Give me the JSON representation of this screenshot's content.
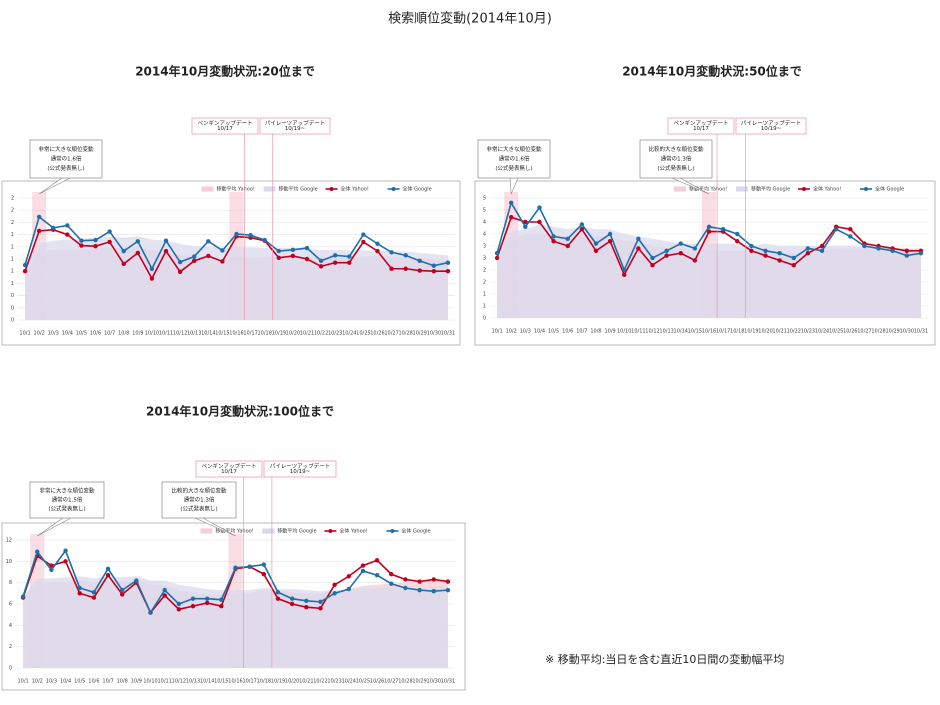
{
  "title": "検索順位変動(2014年10月)",
  "note": "※ 移動平均:当日を含む直近10日間の変動幅平均",
  "chart_data": [
    {
      "type": "line",
      "title": "2014年10月変動状況:20位まで",
      "categories": [
        "10/1",
        "10/2",
        "10/3",
        "10/4",
        "10/5",
        "10/6",
        "10/7",
        "10/8",
        "10/9",
        "10/10",
        "10/11",
        "10/12",
        "10/13",
        "10/14",
        "10/15",
        "10/16",
        "10/17",
        "10/18",
        "10/19",
        "10/20",
        "10/21",
        "10/22",
        "10/23",
        "10/24",
        "10/25",
        "10/26",
        "10/27",
        "10/28",
        "10/29",
        "10/30",
        "10/31"
      ],
      "series": [
        {
          "name": "移動平均 Yahoo!",
          "color": "#f4cdd6",
          "style": "area",
          "values": [
            0.8,
            1.1,
            1.15,
            1.15,
            1.16,
            1.18,
            1.18,
            1.18,
            1.2,
            1.14,
            1.13,
            1.07,
            1.04,
            1.03,
            1.0,
            1.03,
            1.02,
            1.03,
            1.03,
            1.04,
            1.03,
            1.03,
            1.02,
            1.01,
            1.04,
            1.05,
            1.04,
            1.02,
            1.0,
            0.98,
            0.96
          ]
        },
        {
          "name": "移動平均 Google",
          "color": "#d9d9ee",
          "style": "area",
          "values": [
            0.9,
            1.25,
            1.3,
            1.32,
            1.33,
            1.35,
            1.36,
            1.35,
            1.37,
            1.32,
            1.3,
            1.25,
            1.21,
            1.21,
            1.18,
            1.19,
            1.19,
            1.18,
            1.18,
            1.18,
            1.16,
            1.15,
            1.15,
            1.14,
            1.14,
            1.14,
            1.13,
            1.12,
            1.1,
            1.08,
            1.06
          ]
        },
        {
          "name": "全体 Yahoo!",
          "color": "#c0001f",
          "style": "line",
          "values": [
            0.8,
            1.46,
            1.48,
            1.4,
            1.22,
            1.21,
            1.28,
            0.92,
            1.1,
            0.68,
            1.13,
            0.79,
            0.97,
            1.05,
            0.96,
            1.37,
            1.35,
            1.3,
            1.02,
            1.05,
            1.0,
            0.88,
            0.94,
            0.94,
            1.28,
            1.13,
            0.84,
            0.84,
            0.81,
            0.8,
            0.8
          ]
        },
        {
          "name": "全体 Google",
          "color": "#1f6fa8",
          "style": "line",
          "values": [
            0.9,
            1.69,
            1.51,
            1.55,
            1.3,
            1.31,
            1.45,
            1.13,
            1.29,
            0.84,
            1.3,
            0.95,
            1.04,
            1.29,
            1.14,
            1.41,
            1.39,
            1.31,
            1.13,
            1.15,
            1.18,
            0.97,
            1.06,
            1.04,
            1.4,
            1.25,
            1.11,
            1.06,
            0.97,
            0.89,
            0.94
          ]
        }
      ],
      "ylim": [
        0,
        2
      ],
      "yticks": [
        0,
        {
          "value": 0.2,
          "label": "0"
        },
        {
          "value": 0.4,
          "label": "0"
        },
        {
          "value": 0.6,
          "label": "1"
        },
        {
          "value": 0.8,
          "label": "1"
        },
        1,
        {
          "value": 1.2,
          "label": "1"
        },
        {
          "value": 1.4,
          "label": "1"
        },
        {
          "value": 1.6,
          "label": "2"
        },
        {
          "value": 1.8,
          "label": "2"
        },
        2
      ],
      "grid": true,
      "annotations": [
        {
          "lines": [
            "非常に大きな順位変動",
            "通常の1.6倍",
            "(公式発表無し)"
          ]
        },
        {
          "lines": [
            "ペンギンアップデート",
            "10/17"
          ]
        },
        {
          "lines": [
            "パイレーツアップデート",
            "10/19~"
          ]
        }
      ]
    },
    {
      "type": "line",
      "title": "2014年10月変動状況:50位まで",
      "categories": [
        "10/1",
        "10/2",
        "10/3",
        "10/4",
        "10/5",
        "10/6",
        "10/7",
        "10/8",
        "10/9",
        "10/10",
        "10/11",
        "10/12",
        "10/13",
        "10/14",
        "10/15",
        "10/16",
        "10/17",
        "10/18",
        "10/19",
        "10/20",
        "10/21",
        "10/22",
        "10/23",
        "10/24",
        "10/25",
        "10/26",
        "10/27",
        "10/28",
        "10/29",
        "10/30",
        "10/31"
      ],
      "series": [
        {
          "name": "移動平均 Yahoo!",
          "color": "#f4cdd6",
          "style": "area",
          "values": [
            2.5,
            3.3,
            3.5,
            3.5,
            3.5,
            3.4,
            3.5,
            3.4,
            3.4,
            3.2,
            3.2,
            3.0,
            2.9,
            2.9,
            2.8,
            2.8,
            2.8,
            2.8,
            2.8,
            2.8,
            2.7,
            2.7,
            2.7,
            2.8,
            2.9,
            2.9,
            2.9,
            2.9,
            2.9,
            2.9,
            2.9
          ]
        },
        {
          "name": "移動平均 Google",
          "color": "#d9d9ee",
          "style": "area",
          "values": [
            2.7,
            3.6,
            3.7,
            3.9,
            3.8,
            3.7,
            3.8,
            3.7,
            3.7,
            3.5,
            3.4,
            3.3,
            3.2,
            3.1,
            3.1,
            3.1,
            3.1,
            3.1,
            3.0,
            3.1,
            3.0,
            3.0,
            3.0,
            3.0,
            3.0,
            3.0,
            3.0,
            3.0,
            2.9,
            2.9,
            2.8
          ]
        },
        {
          "name": "全体 Yahoo!",
          "color": "#c0001f",
          "style": "line",
          "values": [
            2.5,
            4.2,
            4.0,
            4.0,
            3.2,
            3.0,
            3.7,
            2.8,
            3.2,
            1.8,
            2.9,
            2.2,
            2.6,
            2.7,
            2.4,
            3.6,
            3.6,
            3.2,
            2.8,
            2.6,
            2.4,
            2.2,
            2.7,
            3.0,
            3.8,
            3.7,
            3.1,
            3.0,
            2.9,
            2.8,
            2.8
          ]
        },
        {
          "name": "全体 Google",
          "color": "#1f6fa8",
          "style": "line",
          "values": [
            2.7,
            4.8,
            3.8,
            4.6,
            3.4,
            3.3,
            3.9,
            3.1,
            3.5,
            2.0,
            3.3,
            2.5,
            2.8,
            3.1,
            2.9,
            3.8,
            3.7,
            3.5,
            3.0,
            2.8,
            2.7,
            2.5,
            2.9,
            2.8,
            3.7,
            3.4,
            3.0,
            2.9,
            2.8,
            2.6,
            2.7
          ]
        }
      ],
      "ylim": [
        0,
        5
      ],
      "yticks": [
        0,
        {
          "value": 0.5,
          "label": "1"
        },
        1,
        {
          "value": 1.5,
          "label": "2"
        },
        2,
        {
          "value": 2.5,
          "label": "3"
        },
        3,
        {
          "value": 3.5,
          "label": "4"
        },
        4,
        {
          "value": 4.5,
          "label": "5"
        },
        5
      ],
      "grid": true,
      "annotations": [
        {
          "lines": [
            "非常に大きな順位変動",
            "通常の1.6倍",
            "(公式発表無し)"
          ]
        },
        {
          "lines": [
            "比較的大きな順位変動",
            "通常の1.3倍",
            "(公式発表無し)"
          ]
        },
        {
          "lines": [
            "ペンギンアップデート",
            "10/17"
          ]
        },
        {
          "lines": [
            "パイレーツアップデート",
            "10/19~"
          ]
        }
      ]
    },
    {
      "type": "line",
      "title": "2014年10月変動状況:100位まで",
      "categories": [
        "10/1",
        "10/2",
        "10/3",
        "10/4",
        "10/5",
        "10/6",
        "10/7",
        "10/8",
        "10/9",
        "10/10",
        "10/11",
        "10/12",
        "10/13",
        "10/14",
        "10/15",
        "10/16",
        "10/17",
        "10/18",
        "10/19",
        "10/20",
        "10/21",
        "10/22",
        "10/23",
        "10/24",
        "10/25",
        "10/26",
        "10/27",
        "10/28",
        "10/29",
        "10/30",
        "10/31"
      ],
      "series": [
        {
          "name": "移動平均 Yahoo!",
          "color": "#f4cdd6",
          "style": "area",
          "values": [
            6.6,
            8.0,
            8.0,
            8.0,
            8.2,
            8.0,
            8.2,
            8.1,
            8.2,
            7.8,
            7.8,
            7.3,
            7.1,
            6.9,
            6.9,
            7.0,
            7.0,
            7.3,
            7.2,
            7.1,
            7.0,
            7.0,
            7.2,
            7.4,
            7.7,
            7.8,
            7.9,
            8.0,
            8.1,
            8.2,
            8.3
          ]
        },
        {
          "name": "移動平均 Google",
          "color": "#d9d9ee",
          "style": "area",
          "values": [
            6.7,
            8.4,
            8.4,
            8.5,
            8.6,
            8.4,
            8.6,
            8.5,
            8.6,
            8.2,
            8.2,
            7.8,
            7.6,
            7.4,
            7.3,
            7.3,
            7.3,
            7.5,
            7.4,
            7.4,
            7.3,
            7.2,
            7.3,
            7.3,
            7.5,
            7.5,
            7.5,
            7.5,
            7.5,
            7.6,
            7.6
          ]
        },
        {
          "name": "全体 Yahoo!",
          "color": "#c0001f",
          "style": "line",
          "values": [
            6.6,
            10.5,
            9.6,
            10.0,
            7.0,
            6.6,
            8.7,
            6.9,
            8.0,
            5.2,
            6.8,
            5.5,
            5.8,
            6.1,
            5.8,
            9.3,
            9.5,
            8.8,
            6.5,
            6.0,
            5.7,
            5.6,
            7.8,
            8.6,
            9.6,
            10.1,
            8.8,
            8.3,
            8.1,
            8.3,
            8.1
          ]
        },
        {
          "name": "全体 Google",
          "color": "#1f6fa8",
          "style": "line",
          "values": [
            6.7,
            10.9,
            9.2,
            11.0,
            7.5,
            7.1,
            9.3,
            7.3,
            8.2,
            5.2,
            7.3,
            6.0,
            6.5,
            6.5,
            6.4,
            9.4,
            9.5,
            9.7,
            7.1,
            6.5,
            6.3,
            6.2,
            7.0,
            7.4,
            9.1,
            8.7,
            7.9,
            7.5,
            7.3,
            7.2,
            7.3
          ]
        }
      ],
      "ylim": [
        0,
        12
      ],
      "yticks": [
        0,
        2,
        4,
        6,
        8,
        10,
        12
      ],
      "grid": true,
      "annotations": [
        {
          "lines": [
            "非常に大きな順位変動",
            "通常の1.5倍",
            "(公式発表無し)"
          ]
        },
        {
          "lines": [
            "比較的大きな順位変動",
            "通常の1.3倍",
            "(公式発表無し)"
          ]
        },
        {
          "lines": [
            "ペンギンアップデート",
            "10/17"
          ]
        },
        {
          "lines": [
            "パイレーツアップデート",
            "10/19~"
          ]
        }
      ]
    }
  ]
}
